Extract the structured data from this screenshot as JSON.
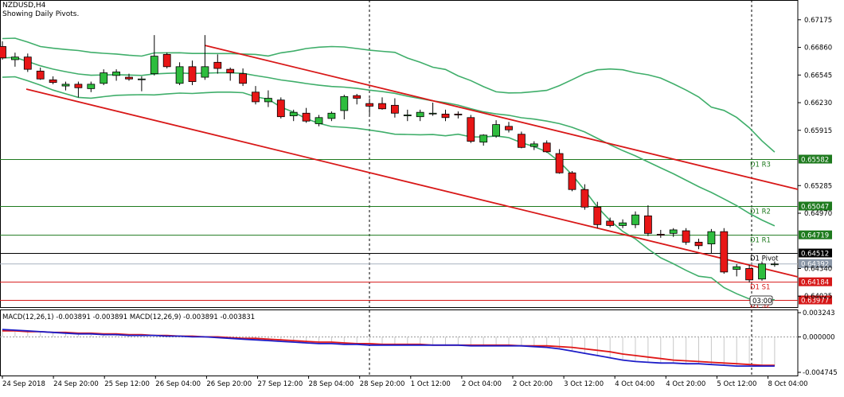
{
  "header": {
    "symbol": "NZDUSD,H4",
    "subtitle": "Showing Daily Pivots."
  },
  "price_axis": {
    "labels": [
      "0.67175",
      "0.66860",
      "0.66545",
      "0.66230",
      "0.65915",
      "0.65285",
      "0.64970",
      "0.64340",
      "0.64025"
    ],
    "values": [
      0.67175,
      0.6686,
      0.66545,
      0.6623,
      0.65915,
      0.65285,
      0.6497,
      0.6434,
      0.64025
    ]
  },
  "pivots": [
    {
      "label": "D1 R3",
      "value": 0.65582,
      "tag": "0.65582",
      "color": "#1e7a1e"
    },
    {
      "label": "D1 R2",
      "value": 0.65047,
      "tag": "0.65047",
      "color": "#1e7a1e"
    },
    {
      "label": "D1 R1",
      "value": 0.64719,
      "tag": "0.64719",
      "color": "#1e7a1e"
    },
    {
      "label": "D1 Pivot",
      "value": 0.64512,
      "tag": "0.64512",
      "color": "#000000"
    },
    {
      "label": "D1 S1",
      "value": 0.64184,
      "tag": "0.64184",
      "color": "#d61818"
    },
    {
      "label": "D1 S2",
      "value": 0.63977,
      "tag": "0.63977",
      "color": "#d61818"
    }
  ],
  "current_price": {
    "value": 0.64392,
    "tag": "0.64392",
    "color": "#8a96a6"
  },
  "countdown": "03:00",
  "macd": {
    "title": "MACD(12,26,1) -0.003891 -0.003891 MACD(12,26,9) -0.003891 -0.003831",
    "axis_labels": [
      "0.003243",
      "0.000000",
      "-0.004745"
    ],
    "axis_values": [
      0.003243,
      0.0,
      -0.004745
    ]
  },
  "time_axis": {
    "labels": [
      "24 Sep 2018",
      "24 Sep 20:00",
      "25 Sep 12:00",
      "26 Sep 04:00",
      "26 Sep 20:00",
      "27 Sep 12:00",
      "28 Sep 04:00",
      "28 Sep 20:00",
      "1 Oct 12:00",
      "2 Oct 04:00",
      "2 Oct 20:00",
      "3 Oct 12:00",
      "4 Oct 04:00",
      "4 Oct 20:00",
      "5 Oct 12:00",
      "8 Oct 04:00"
    ]
  },
  "colors": {
    "bull": "#2ebd3e",
    "bear": "#e81616",
    "bands": "#3fae6a",
    "channel": "#d81818",
    "macd_main": "#1d1dc8",
    "macd_signal": "#e01818"
  },
  "chart_data": {
    "type": "candlestick",
    "interval": "H4",
    "ylim": [
      0.639,
      0.674
    ],
    "candles": [
      {
        "o": 0.6687,
        "h": 0.6693,
        "l": 0.6672,
        "c": 0.6674
      },
      {
        "o": 0.6672,
        "h": 0.668,
        "l": 0.6664,
        "c": 0.6675
      },
      {
        "o": 0.6675,
        "h": 0.6679,
        "l": 0.6658,
        "c": 0.6661
      },
      {
        "o": 0.6659,
        "h": 0.6663,
        "l": 0.6649,
        "c": 0.665
      },
      {
        "o": 0.6649,
        "h": 0.6653,
        "l": 0.6644,
        "c": 0.6646
      },
      {
        "o": 0.6642,
        "h": 0.6647,
        "l": 0.6637,
        "c": 0.6644
      },
      {
        "o": 0.6644,
        "h": 0.6647,
        "l": 0.6629,
        "c": 0.664
      },
      {
        "o": 0.6639,
        "h": 0.6647,
        "l": 0.6635,
        "c": 0.6644
      },
      {
        "o": 0.6645,
        "h": 0.6661,
        "l": 0.6643,
        "c": 0.6657
      },
      {
        "o": 0.6654,
        "h": 0.6661,
        "l": 0.6648,
        "c": 0.6658
      },
      {
        "o": 0.6652,
        "h": 0.6656,
        "l": 0.6648,
        "c": 0.665
      },
      {
        "o": 0.665,
        "h": 0.6653,
        "l": 0.6636,
        "c": 0.665
      },
      {
        "o": 0.6656,
        "h": 0.67,
        "l": 0.6654,
        "c": 0.6676
      },
      {
        "o": 0.6678,
        "h": 0.668,
        "l": 0.6662,
        "c": 0.6664
      },
      {
        "o": 0.6645,
        "h": 0.6669,
        "l": 0.6643,
        "c": 0.6664
      },
      {
        "o": 0.6664,
        "h": 0.6671,
        "l": 0.6643,
        "c": 0.6647
      },
      {
        "o": 0.6652,
        "h": 0.67,
        "l": 0.6649,
        "c": 0.6664
      },
      {
        "o": 0.6669,
        "h": 0.6678,
        "l": 0.6656,
        "c": 0.6662
      },
      {
        "o": 0.6661,
        "h": 0.6663,
        "l": 0.6648,
        "c": 0.6657
      },
      {
        "o": 0.6656,
        "h": 0.6662,
        "l": 0.6642,
        "c": 0.6645
      },
      {
        "o": 0.6635,
        "h": 0.6642,
        "l": 0.6621,
        "c": 0.6624
      },
      {
        "o": 0.6624,
        "h": 0.6637,
        "l": 0.6618,
        "c": 0.6628
      },
      {
        "o": 0.6626,
        "h": 0.6629,
        "l": 0.6605,
        "c": 0.6607
      },
      {
        "o": 0.6608,
        "h": 0.6615,
        "l": 0.6602,
        "c": 0.6612
      },
      {
        "o": 0.6611,
        "h": 0.6617,
        "l": 0.66,
        "c": 0.6602
      },
      {
        "o": 0.6599,
        "h": 0.6609,
        "l": 0.6596,
        "c": 0.6606
      },
      {
        "o": 0.6605,
        "h": 0.6613,
        "l": 0.6602,
        "c": 0.6611
      },
      {
        "o": 0.6614,
        "h": 0.6632,
        "l": 0.6604,
        "c": 0.663
      },
      {
        "o": 0.6631,
        "h": 0.6633,
        "l": 0.6621,
        "c": 0.6628
      },
      {
        "o": 0.6622,
        "h": 0.6628,
        "l": 0.6608,
        "c": 0.6619
      },
      {
        "o": 0.6622,
        "h": 0.6629,
        "l": 0.6615,
        "c": 0.6616
      },
      {
        "o": 0.662,
        "h": 0.6628,
        "l": 0.6606,
        "c": 0.6611
      },
      {
        "o": 0.6608,
        "h": 0.6615,
        "l": 0.6602,
        "c": 0.6609
      },
      {
        "o": 0.6607,
        "h": 0.6615,
        "l": 0.6602,
        "c": 0.6612
      },
      {
        "o": 0.6611,
        "h": 0.6623,
        "l": 0.6608,
        "c": 0.6611
      },
      {
        "o": 0.661,
        "h": 0.6615,
        "l": 0.6602,
        "c": 0.6606
      },
      {
        "o": 0.661,
        "h": 0.6613,
        "l": 0.6605,
        "c": 0.6609
      },
      {
        "o": 0.6606,
        "h": 0.6609,
        "l": 0.6577,
        "c": 0.6579
      },
      {
        "o": 0.6578,
        "h": 0.6587,
        "l": 0.6574,
        "c": 0.6586
      },
      {
        "o": 0.6585,
        "h": 0.6603,
        "l": 0.6583,
        "c": 0.6598
      },
      {
        "o": 0.6596,
        "h": 0.6601,
        "l": 0.6589,
        "c": 0.6592
      },
      {
        "o": 0.6587,
        "h": 0.659,
        "l": 0.6571,
        "c": 0.6572
      },
      {
        "o": 0.6573,
        "h": 0.6579,
        "l": 0.6569,
        "c": 0.6576
      },
      {
        "o": 0.6577,
        "h": 0.658,
        "l": 0.6566,
        "c": 0.6567
      },
      {
        "o": 0.6565,
        "h": 0.657,
        "l": 0.6542,
        "c": 0.6543
      },
      {
        "o": 0.6543,
        "h": 0.6545,
        "l": 0.6522,
        "c": 0.6524
      },
      {
        "o": 0.6524,
        "h": 0.653,
        "l": 0.6501,
        "c": 0.6504
      },
      {
        "o": 0.6504,
        "h": 0.651,
        "l": 0.648,
        "c": 0.6484
      },
      {
        "o": 0.6488,
        "h": 0.6492,
        "l": 0.6481,
        "c": 0.6483
      },
      {
        "o": 0.6483,
        "h": 0.649,
        "l": 0.648,
        "c": 0.6486
      },
      {
        "o": 0.6484,
        "h": 0.6499,
        "l": 0.648,
        "c": 0.6495
      },
      {
        "o": 0.6494,
        "h": 0.6506,
        "l": 0.6471,
        "c": 0.6474
      },
      {
        "o": 0.6473,
        "h": 0.6478,
        "l": 0.6469,
        "c": 0.6472
      },
      {
        "o": 0.6474,
        "h": 0.648,
        "l": 0.647,
        "c": 0.6478
      },
      {
        "o": 0.6477,
        "h": 0.648,
        "l": 0.6461,
        "c": 0.6464
      },
      {
        "o": 0.6464,
        "h": 0.6468,
        "l": 0.6456,
        "c": 0.646
      },
      {
        "o": 0.6462,
        "h": 0.6479,
        "l": 0.6451,
        "c": 0.6476
      },
      {
        "o": 0.6476,
        "h": 0.648,
        "l": 0.6428,
        "c": 0.643
      },
      {
        "o": 0.6433,
        "h": 0.6439,
        "l": 0.6425,
        "c": 0.6436
      },
      {
        "o": 0.6434,
        "h": 0.6438,
        "l": 0.6418,
        "c": 0.6421
      },
      {
        "o": 0.6422,
        "h": 0.6442,
        "l": 0.642,
        "c": 0.64392
      },
      {
        "o": 0.64392,
        "h": 0.6442,
        "l": 0.6436,
        "c": 0.64392
      }
    ],
    "macd_main": [
      0.001,
      0.0009,
      0.0008,
      0.0007,
      0.0006,
      0.0005,
      0.0004,
      0.0004,
      0.0003,
      0.0003,
      0.0002,
      0.0002,
      0.0002,
      0.0001,
      0.0001,
      0.0,
      0.0,
      -0.0001,
      -0.0002,
      -0.0003,
      -0.0004,
      -0.0005,
      -0.0006,
      -0.0007,
      -0.0008,
      -0.0009,
      -0.0009,
      -0.001,
      -0.001,
      -0.0011,
      -0.0011,
      -0.0011,
      -0.0011,
      -0.0011,
      -0.0011,
      -0.0011,
      -0.0011,
      -0.0012,
      -0.0012,
      -0.0012,
      -0.0012,
      -0.0012,
      -0.0013,
      -0.0014,
      -0.0016,
      -0.0019,
      -0.0022,
      -0.0025,
      -0.0028,
      -0.0031,
      -0.0033,
      -0.0034,
      -0.0035,
      -0.0035,
      -0.0036,
      -0.0036,
      -0.0037,
      -0.0038,
      -0.0039,
      -0.0039,
      -0.0039,
      -0.0039
    ],
    "macd_signal": [
      0.0008,
      0.0008,
      0.0007,
      0.0007,
      0.0006,
      0.0006,
      0.0005,
      0.0005,
      0.0004,
      0.0004,
      0.0003,
      0.0003,
      0.0002,
      0.0002,
      0.0001,
      0.0001,
      0.0,
      0.0,
      -0.0001,
      -0.0002,
      -0.0002,
      -0.0003,
      -0.0004,
      -0.0005,
      -0.0006,
      -0.0007,
      -0.0007,
      -0.0008,
      -0.0009,
      -0.0009,
      -0.001,
      -0.001,
      -0.001,
      -0.001,
      -0.0011,
      -0.0011,
      -0.0011,
      -0.0011,
      -0.0011,
      -0.0011,
      -0.0011,
      -0.0012,
      -0.0012,
      -0.0012,
      -0.0013,
      -0.0014,
      -0.0016,
      -0.0018,
      -0.002,
      -0.0023,
      -0.0025,
      -0.0027,
      -0.0029,
      -0.0031,
      -0.0032,
      -0.0033,
      -0.0034,
      -0.0035,
      -0.0036,
      -0.0037,
      -0.0038,
      -0.0038
    ]
  }
}
